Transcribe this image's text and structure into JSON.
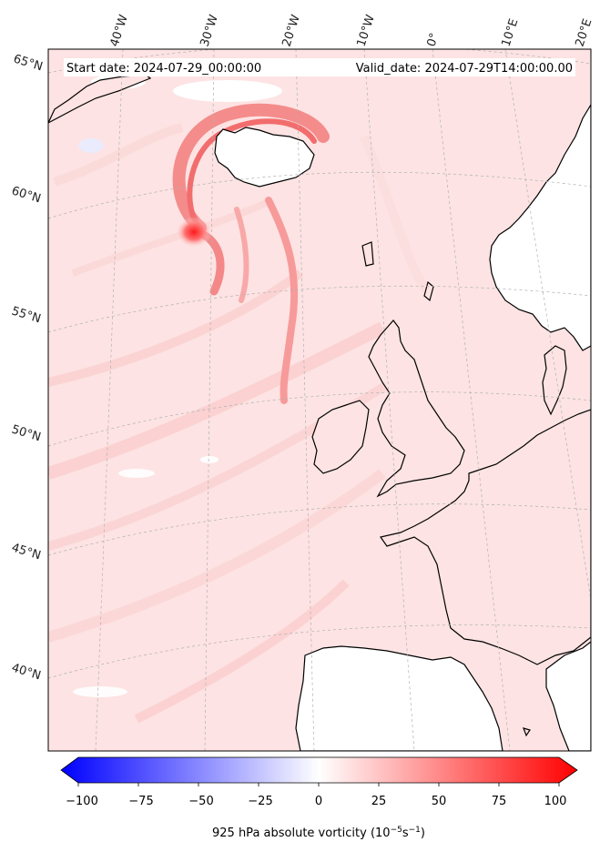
{
  "header": {
    "start_date": "Start date: 2024-07-29_00:00:00",
    "valid_date": "Valid_date: 2024-07-29T14:00:00.00"
  },
  "lon_labels": [
    "40°W",
    "30°W",
    "20°W",
    "10°W",
    "0°",
    "10°E",
    "20°E"
  ],
  "lat_labels": [
    "65°N",
    "60°N",
    "55°N",
    "50°N",
    "45°N",
    "40°N"
  ],
  "colorbar": {
    "ticks": [
      "−100",
      "−75",
      "−50",
      "−25",
      "0",
      "25",
      "50",
      "75",
      "100"
    ],
    "label": "925 hPa absolute vorticity (10",
    "label_sup1": "−5",
    "label_mid": "s",
    "label_sup2": "−1",
    "label_end": ")",
    "min": -100,
    "max": 100,
    "colors": {
      "negative": "#0000ff",
      "zero": "#ffffff",
      "positive": "#ff0000"
    }
  },
  "colors": {
    "background_field": "#fde3e3",
    "land_low": "#ffffff",
    "coastline": "#000000",
    "gridline": "#b0b0b0"
  }
}
